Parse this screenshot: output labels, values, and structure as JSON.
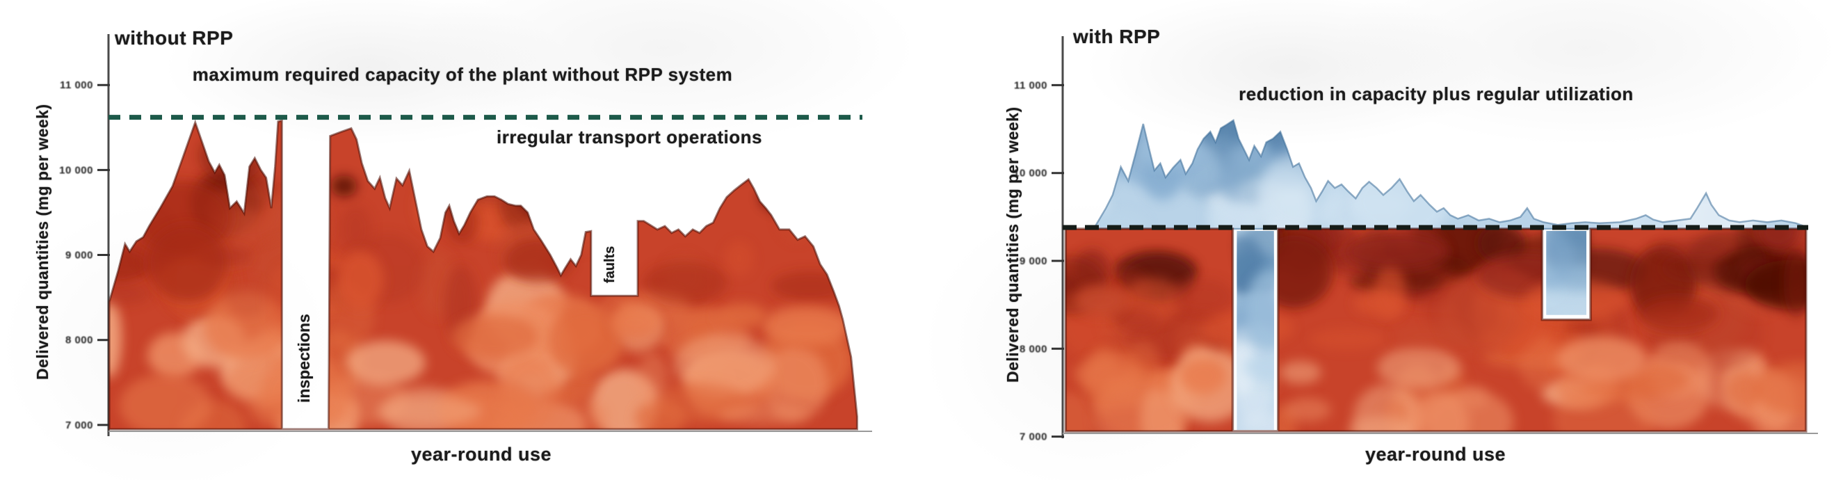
{
  "figure": {
    "background": "#ffffff",
    "text_color": "#1b1b1b"
  },
  "chart_data": [
    {
      "type": "area",
      "title": "without RPP",
      "xlabel": "year-round use",
      "ylabel": "Delivered quantities (mg per week)",
      "ytick_labels": [
        "11 000",
        "10 000",
        "9 000",
        "8 000",
        "7 000"
      ],
      "ytick_values": [
        11000,
        10000,
        9000,
        8000,
        7000
      ],
      "ylim": [
        6950,
        11550
      ],
      "grid": false,
      "legend_position": "none",
      "area_color": "#c8432a",
      "area_edge_color": "#4d0e06",
      "capacity_line": {
        "label": "maximum required capacity of the plant without RPP system",
        "value": 10620,
        "color": "#1d5a4a",
        "style": "dashed"
      },
      "annotation_below_line": "irregular transport operations",
      "gaps": [
        {
          "label": "inspections",
          "x0": 0.23,
          "x1": 0.292,
          "floor": null
        },
        {
          "label": "faults",
          "x0": 0.64,
          "x1": 0.702,
          "floor": 8520
        }
      ],
      "profile_x_unit": "fraction of year (0-1)",
      "profile": [
        [
          0.001,
          8450
        ],
        [
          0.013,
          8820
        ],
        [
          0.022,
          9130
        ],
        [
          0.028,
          9040
        ],
        [
          0.037,
          9160
        ],
        [
          0.046,
          9210
        ],
        [
          0.054,
          9340
        ],
        [
          0.069,
          9560
        ],
        [
          0.085,
          9810
        ],
        [
          0.098,
          10130
        ],
        [
          0.115,
          10560
        ],
        [
          0.126,
          10280
        ],
        [
          0.133,
          10100
        ],
        [
          0.141,
          9970
        ],
        [
          0.147,
          10060
        ],
        [
          0.154,
          9940
        ],
        [
          0.161,
          9550
        ],
        [
          0.17,
          9630
        ],
        [
          0.18,
          9490
        ],
        [
          0.187,
          10040
        ],
        [
          0.194,
          10140
        ],
        [
          0.202,
          10000
        ],
        [
          0.209,
          9910
        ],
        [
          0.216,
          9550
        ],
        [
          0.221,
          10040
        ],
        [
          0.225,
          10570
        ],
        [
          0.229,
          10580
        ],
        [
          0.294,
          10400
        ],
        [
          0.309,
          10450
        ],
        [
          0.322,
          10490
        ],
        [
          0.329,
          10360
        ],
        [
          0.336,
          10080
        ],
        [
          0.344,
          9870
        ],
        [
          0.353,
          9780
        ],
        [
          0.36,
          9910
        ],
        [
          0.367,
          9670
        ],
        [
          0.373,
          9550
        ],
        [
          0.382,
          9900
        ],
        [
          0.39,
          9820
        ],
        [
          0.399,
          9990
        ],
        [
          0.408,
          9600
        ],
        [
          0.415,
          9300
        ],
        [
          0.423,
          9100
        ],
        [
          0.431,
          9040
        ],
        [
          0.44,
          9200
        ],
        [
          0.447,
          9500
        ],
        [
          0.452,
          9580
        ],
        [
          0.458,
          9400
        ],
        [
          0.465,
          9250
        ],
        [
          0.472,
          9350
        ],
        [
          0.48,
          9500
        ],
        [
          0.49,
          9650
        ],
        [
          0.502,
          9690
        ],
        [
          0.512,
          9690
        ],
        [
          0.521,
          9650
        ],
        [
          0.53,
          9600
        ],
        [
          0.54,
          9580
        ],
        [
          0.547,
          9580
        ],
        [
          0.556,
          9500
        ],
        [
          0.564,
          9300
        ],
        [
          0.574,
          9170
        ],
        [
          0.586,
          9000
        ],
        [
          0.595,
          8850
        ],
        [
          0.6,
          8760
        ],
        [
          0.606,
          8850
        ],
        [
          0.613,
          8950
        ],
        [
          0.62,
          8870
        ],
        [
          0.627,
          9000
        ],
        [
          0.633,
          9270
        ],
        [
          0.64,
          9280
        ],
        [
          0.702,
          9400
        ],
        [
          0.71,
          9400
        ],
        [
          0.719,
          9350
        ],
        [
          0.728,
          9300
        ],
        [
          0.738,
          9340
        ],
        [
          0.747,
          9260
        ],
        [
          0.756,
          9300
        ],
        [
          0.765,
          9220
        ],
        [
          0.775,
          9300
        ],
        [
          0.784,
          9260
        ],
        [
          0.793,
          9340
        ],
        [
          0.802,
          9380
        ],
        [
          0.811,
          9550
        ],
        [
          0.82,
          9680
        ],
        [
          0.83,
          9760
        ],
        [
          0.84,
          9830
        ],
        [
          0.849,
          9890
        ],
        [
          0.856,
          9780
        ],
        [
          0.864,
          9630
        ],
        [
          0.872,
          9550
        ],
        [
          0.879,
          9470
        ],
        [
          0.89,
          9300
        ],
        [
          0.903,
          9300
        ],
        [
          0.914,
          9180
        ],
        [
          0.924,
          9220
        ],
        [
          0.935,
          9100
        ],
        [
          0.944,
          8890
        ],
        [
          0.953,
          8770
        ],
        [
          0.962,
          8570
        ],
        [
          0.969,
          8400
        ],
        [
          0.974,
          8240
        ],
        [
          0.985,
          7800
        ],
        [
          0.993,
          7100
        ]
      ]
    },
    {
      "type": "area",
      "title": "with RPP",
      "xlabel": "year-round use",
      "ylabel": "Delivered quantities (mg per week)",
      "ytick_labels": [
        "11 000",
        "10 000",
        "9 000",
        "8 000",
        "7 000"
      ],
      "ytick_values": [
        11000,
        10000,
        9000,
        8000,
        7000
      ],
      "ylim": [
        7060,
        11510
      ],
      "grid": false,
      "legend_position": "none",
      "area_color": "#c8432a",
      "area_edge_color": "#4d0e06",
      "peaks_color": "#b9d3e8",
      "peaks_edge_color": "#3f6f99",
      "capacity_line": {
        "label": "reduction in capacity plus regular utilization",
        "value": 9380,
        "color": "#151c18",
        "style": "dashed"
      },
      "block": {
        "top": 9380,
        "x0": 0.004,
        "x1": 0.997
      },
      "gaps": [
        {
          "x0": 0.228,
          "x1": 0.289,
          "floor": null,
          "fill": "blue"
        },
        {
          "x0": 0.643,
          "x1": 0.708,
          "floor": 8330,
          "fill": "blue"
        }
      ],
      "profile_x_unit": "fraction of year (0-1)",
      "peaks_profile": [
        [
          0.044,
          9400
        ],
        [
          0.058,
          9600
        ],
        [
          0.067,
          9750
        ],
        [
          0.078,
          10070
        ],
        [
          0.088,
          9910
        ],
        [
          0.098,
          10230
        ],
        [
          0.108,
          10560
        ],
        [
          0.116,
          10270
        ],
        [
          0.123,
          10030
        ],
        [
          0.131,
          10110
        ],
        [
          0.138,
          9950
        ],
        [
          0.148,
          10060
        ],
        [
          0.158,
          10150
        ],
        [
          0.165,
          9990
        ],
        [
          0.174,
          10110
        ],
        [
          0.181,
          10270
        ],
        [
          0.189,
          10390
        ],
        [
          0.198,
          10470
        ],
        [
          0.205,
          10350
        ],
        [
          0.212,
          10510
        ],
        [
          0.22,
          10550
        ],
        [
          0.229,
          10600
        ],
        [
          0.236,
          10390
        ],
        [
          0.243,
          10270
        ],
        [
          0.25,
          10150
        ],
        [
          0.257,
          10310
        ],
        [
          0.266,
          10190
        ],
        [
          0.273,
          10350
        ],
        [
          0.282,
          10390
        ],
        [
          0.292,
          10470
        ],
        [
          0.301,
          10270
        ],
        [
          0.309,
          10070
        ],
        [
          0.317,
          10110
        ],
        [
          0.325,
          9950
        ],
        [
          0.333,
          9830
        ],
        [
          0.34,
          9680
        ],
        [
          0.348,
          9790
        ],
        [
          0.356,
          9910
        ],
        [
          0.365,
          9830
        ],
        [
          0.374,
          9870
        ],
        [
          0.383,
          9790
        ],
        [
          0.393,
          9710
        ],
        [
          0.402,
          9830
        ],
        [
          0.411,
          9900
        ],
        [
          0.421,
          9830
        ],
        [
          0.43,
          9750
        ],
        [
          0.441,
          9830
        ],
        [
          0.452,
          9930
        ],
        [
          0.462,
          9790
        ],
        [
          0.471,
          9680
        ],
        [
          0.48,
          9750
        ],
        [
          0.492,
          9640
        ],
        [
          0.502,
          9560
        ],
        [
          0.511,
          9600
        ],
        [
          0.52,
          9520
        ],
        [
          0.53,
          9480
        ],
        [
          0.544,
          9520
        ],
        [
          0.558,
          9460
        ],
        [
          0.572,
          9480
        ],
        [
          0.586,
          9440
        ],
        [
          0.6,
          9460
        ],
        [
          0.614,
          9500
        ],
        [
          0.623,
          9600
        ],
        [
          0.632,
          9480
        ],
        [
          0.645,
          9440
        ],
        [
          0.664,
          9410
        ],
        [
          0.683,
          9430
        ],
        [
          0.701,
          9440
        ],
        [
          0.72,
          9430
        ],
        [
          0.748,
          9440
        ],
        [
          0.769,
          9480
        ],
        [
          0.782,
          9520
        ],
        [
          0.792,
          9470
        ],
        [
          0.805,
          9440
        ],
        [
          0.824,
          9460
        ],
        [
          0.842,
          9480
        ],
        [
          0.851,
          9600
        ],
        [
          0.863,
          9770
        ],
        [
          0.87,
          9640
        ],
        [
          0.88,
          9520
        ],
        [
          0.894,
          9460
        ],
        [
          0.908,
          9440
        ],
        [
          0.926,
          9460
        ],
        [
          0.945,
          9440
        ],
        [
          0.964,
          9460
        ],
        [
          0.983,
          9430
        ],
        [
          0.993,
          9400
        ]
      ]
    }
  ]
}
